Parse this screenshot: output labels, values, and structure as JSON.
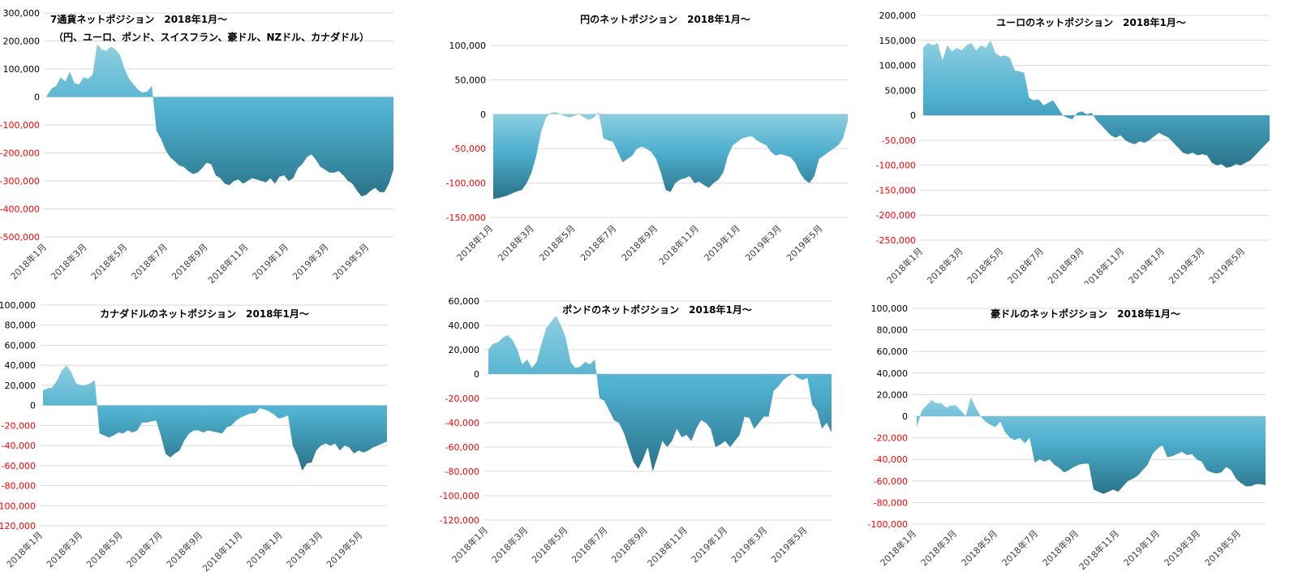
{
  "x_labels": [
    "2018年1月",
    "2018年3月",
    "2018年5月",
    "2018年7月",
    "2018年9月",
    "2018年11月",
    "2019年1月",
    "2019年3月",
    "2019年5月"
  ],
  "colors": {
    "area_light": "#8fcfe0",
    "area_mid": "#4fb0cf",
    "area_dark": "#2a7389",
    "negative_tick": "#ff0000",
    "grid": "#d9d9d9"
  },
  "chart_data": [
    {
      "type": "area",
      "title": "7通貨ネットポジション　2018年1月～",
      "subtitle": "（円、ユーロ、ポンド、スイスフラン、豪ドル、NZドル、カナダドル）",
      "ylim": [
        -500000,
        300000
      ],
      "yticks": [
        "300,000",
        "200,000",
        "100,000",
        "0",
        "-100,000",
        "-200,000",
        "-300,000",
        "-400,000",
        "-500,000"
      ],
      "values": [
        5000,
        30000,
        40000,
        70000,
        55000,
        90000,
        50000,
        45000,
        70000,
        65000,
        80000,
        190000,
        170000,
        165000,
        180000,
        170000,
        150000,
        100000,
        65000,
        45000,
        25000,
        15000,
        20000,
        40000,
        -120000,
        -150000,
        -190000,
        -215000,
        -230000,
        -245000,
        -250000,
        -265000,
        -275000,
        -270000,
        -255000,
        -235000,
        -240000,
        -280000,
        -290000,
        -310000,
        -315000,
        -300000,
        -295000,
        -310000,
        -300000,
        -290000,
        -295000,
        -300000,
        -305000,
        -290000,
        -310000,
        -285000,
        -280000,
        -300000,
        -290000,
        -255000,
        -240000,
        -215000,
        -205000,
        -225000,
        -250000,
        -260000,
        -270000,
        -270000,
        -265000,
        -280000,
        -300000,
        -310000,
        -335000,
        -355000,
        -350000,
        -335000,
        -325000,
        -340000,
        -340000,
        -310000,
        -260000
      ]
    },
    {
      "type": "area",
      "title": "円のネットポジション　2018年1月～",
      "ylim": [
        -150000,
        100000
      ],
      "yticks": [
        "100,000",
        "50,000",
        "0",
        "-50,000",
        "-100,000",
        "-150,000"
      ],
      "values": [
        -123000,
        -122000,
        -120000,
        -118000,
        -115000,
        -112000,
        -110000,
        -100000,
        -85000,
        -60000,
        -25000,
        -5000,
        2000,
        3000,
        0,
        -3000,
        -5000,
        -2000,
        0,
        -5000,
        -8000,
        -5000,
        3000,
        -35000,
        -38000,
        -40000,
        -55000,
        -70000,
        -65000,
        -60000,
        -50000,
        -47000,
        -50000,
        -55000,
        -65000,
        -85000,
        -110000,
        -113000,
        -100000,
        -95000,
        -93000,
        -90000,
        -100000,
        -98000,
        -103000,
        -107000,
        -100000,
        -95000,
        -85000,
        -60000,
        -45000,
        -40000,
        -35000,
        -33000,
        -32000,
        -38000,
        -42000,
        -45000,
        -55000,
        -60000,
        -58000,
        -60000,
        -62000,
        -70000,
        -85000,
        -95000,
        -100000,
        -90000,
        -65000,
        -60000,
        -55000,
        -50000,
        -45000,
        -35000,
        -10000
      ]
    },
    {
      "type": "area",
      "title": "ユーロのネットポジション　2018年1月～",
      "ylim": [
        -250000,
        200000
      ],
      "yticks": [
        "200,000",
        "150,000",
        "100,000",
        "50,000",
        "0",
        "-50,000",
        "-100,000",
        "-150,000",
        "-200,000",
        "-250,000"
      ],
      "values": [
        135000,
        145000,
        140000,
        145000,
        110000,
        140000,
        128000,
        135000,
        130000,
        140000,
        145000,
        130000,
        140000,
        135000,
        150000,
        125000,
        118000,
        120000,
        115000,
        90000,
        88000,
        85000,
        35000,
        30000,
        32000,
        20000,
        25000,
        30000,
        15000,
        0,
        -5000,
        -8000,
        5000,
        8000,
        2000,
        5000,
        -10000,
        -20000,
        -30000,
        -40000,
        -45000,
        -40000,
        -50000,
        -55000,
        -58000,
        -52000,
        -55000,
        -50000,
        -42000,
        -35000,
        -40000,
        -45000,
        -55000,
        -65000,
        -75000,
        -78000,
        -75000,
        -80000,
        -78000,
        -80000,
        -95000,
        -100000,
        -98000,
        -105000,
        -103000,
        -98000,
        -100000,
        -95000,
        -90000,
        -80000,
        -70000,
        -60000,
        -50000
      ]
    },
    {
      "type": "area",
      "title": "カナダドルのネットポジション　2018年1月～",
      "ylim": [
        -120000,
        100000
      ],
      "yticks": [
        "100,000",
        "80,000",
        "60,000",
        "40,000",
        "20,000",
        "0",
        "-20,000",
        "-40,000",
        "-60,000",
        "-80,000",
        "-100,000",
        "-120,000"
      ],
      "values": [
        15000,
        17000,
        18000,
        25000,
        35000,
        40000,
        33000,
        22000,
        20000,
        20000,
        22000,
        25000,
        -28000,
        -30000,
        -32000,
        -30000,
        -27000,
        -28000,
        -25000,
        -27000,
        -25000,
        -17000,
        -17000,
        -16000,
        -15000,
        -30000,
        -48000,
        -52000,
        -48000,
        -45000,
        -35000,
        -28000,
        -25000,
        -25000,
        -27000,
        -25000,
        -26000,
        -27000,
        -28000,
        -22000,
        -20000,
        -15000,
        -12000,
        -10000,
        -8000,
        -8000,
        -3000,
        -4000,
        -6000,
        -9000,
        -13000,
        -12000,
        -10000,
        -40000,
        -50000,
        -65000,
        -58000,
        -57000,
        -45000,
        -40000,
        -38000,
        -40000,
        -38000,
        -45000,
        -40000,
        -42000,
        -48000,
        -45000,
        -47000,
        -45000,
        -42000,
        -40000,
        -38000,
        -36000
      ]
    },
    {
      "type": "area",
      "title": "ポンドのネットポジション　2018年1月～",
      "ylim": [
        -120000,
        60000
      ],
      "yticks": [
        "60,000",
        "40,000",
        "20,000",
        "0",
        "-20,000",
        "-40,000",
        "-60,000",
        "-80,000",
        "-100,000",
        "-120,000"
      ],
      "values": [
        20000,
        25000,
        26000,
        30000,
        32000,
        28000,
        20000,
        8000,
        12000,
        5000,
        10000,
        25000,
        38000,
        43000,
        48000,
        40000,
        30000,
        10000,
        5000,
        6000,
        10000,
        8000,
        12000,
        -20000,
        -22000,
        -30000,
        -38000,
        -40000,
        -48000,
        -60000,
        -72000,
        -78000,
        -70000,
        -60000,
        -80000,
        -68000,
        -55000,
        -60000,
        -55000,
        -45000,
        -52000,
        -50000,
        -55000,
        -45000,
        -38000,
        -40000,
        -45000,
        -60000,
        -58000,
        -55000,
        -60000,
        -55000,
        -50000,
        -35000,
        -36000,
        -45000,
        -40000,
        -35000,
        -35000,
        -14000,
        -10000,
        -5000,
        -2000,
        0,
        -3000,
        -5000,
        -3000,
        -25000,
        -30000,
        -45000,
        -40000,
        -48000
      ]
    },
    {
      "type": "area",
      "title": "豪ドルのネットポジション　2018年1月～",
      "ylim": [
        -100000,
        100000
      ],
      "yticks": [
        "100,000",
        "80,000",
        "60,000",
        "40,000",
        "20,000",
        "0",
        "-20,000",
        "-40,000",
        "-60,000",
        "-80,000",
        "-100,000"
      ],
      "values": [
        -10000,
        5000,
        10000,
        15000,
        12000,
        12000,
        8000,
        10000,
        10000,
        5000,
        0,
        18000,
        8000,
        0,
        -5000,
        -8000,
        -10000,
        -5000,
        -15000,
        -20000,
        -22000,
        -20000,
        -25000,
        -20000,
        -43000,
        -40000,
        -42000,
        -40000,
        -45000,
        -48000,
        -52000,
        -50000,
        -47000,
        -45000,
        -44000,
        -44000,
        -68000,
        -70000,
        -72000,
        -70000,
        -68000,
        -70000,
        -65000,
        -60000,
        -58000,
        -55000,
        -50000,
        -45000,
        -35000,
        -30000,
        -27000,
        -38000,
        -37000,
        -35000,
        -33000,
        -36000,
        -35000,
        -40000,
        -42000,
        -50000,
        -52000,
        -53000,
        -52000,
        -47000,
        -50000,
        -58000,
        -62000,
        -65000,
        -65000,
        -63000,
        -63000,
        -64000
      ]
    }
  ]
}
